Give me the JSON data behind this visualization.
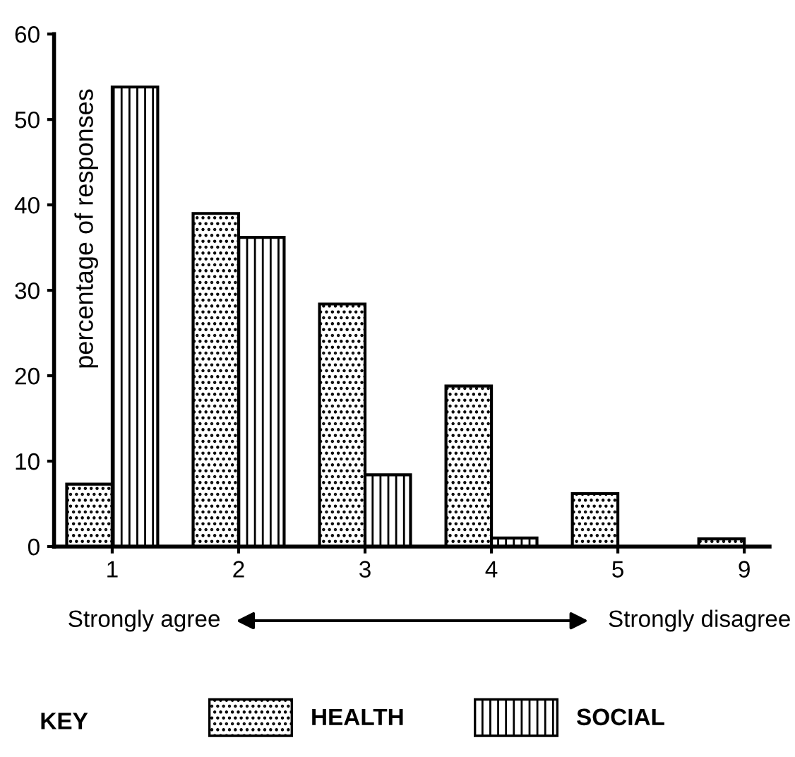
{
  "chart_data": {
    "type": "bar",
    "ylabel": "percentage of responses",
    "categories": [
      "1",
      "2",
      "3",
      "4",
      "5",
      "9"
    ],
    "series": [
      {
        "name": "HEALTH",
        "color": "#000000",
        "values": [
          7.3,
          39.0,
          28.4,
          18.8,
          6.2,
          0.9
        ]
      },
      {
        "name": "SOCIAL",
        "color": "#000000",
        "values": [
          53.8,
          36.2,
          8.4,
          1.0,
          0,
          0
        ]
      }
    ],
    "ylim": [
      0,
      60
    ],
    "yticks": [
      0,
      10,
      20,
      30,
      40,
      50,
      60
    ],
    "grid": false,
    "legend": "bottom",
    "legend_title": "KEY",
    "annotations": [
      "Strongly agree",
      "Strongly disagree"
    ]
  }
}
